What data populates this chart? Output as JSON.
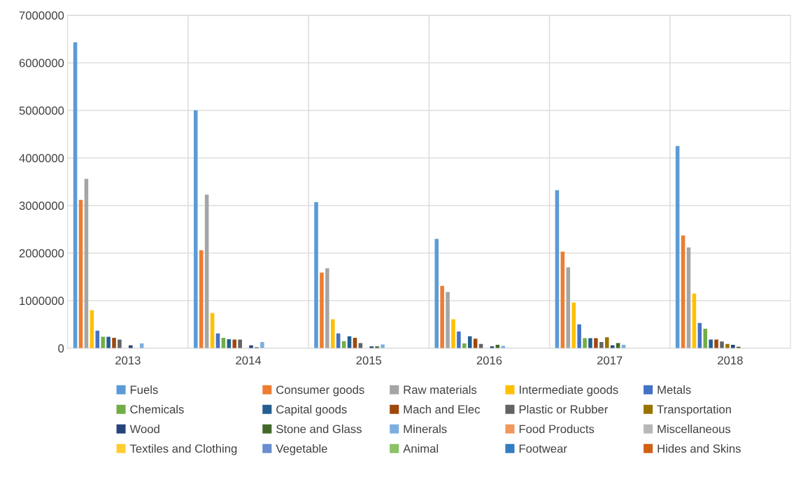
{
  "chart_data": {
    "type": "bar",
    "categories": [
      "2013",
      "2014",
      "2015",
      "2016",
      "2017",
      "2018"
    ],
    "ylim": [
      0,
      7000000
    ],
    "yticks": [
      0,
      1000000,
      2000000,
      3000000,
      4000000,
      5000000,
      6000000,
      7000000
    ],
    "grid": true,
    "legend": "bottom",
    "series": [
      {
        "name": "Fuels",
        "color": "#5b9bd5",
        "values": [
          6430000,
          5000000,
          3070000,
          2300000,
          3320000,
          4250000
        ]
      },
      {
        "name": "Consumer goods",
        "color": "#ed7d31",
        "values": [
          3120000,
          2060000,
          1590000,
          1310000,
          2030000,
          2370000
        ]
      },
      {
        "name": "Raw materials",
        "color": "#a5a5a5",
        "values": [
          3560000,
          3230000,
          1680000,
          1180000,
          1700000,
          2120000
        ]
      },
      {
        "name": "Intermediate goods",
        "color": "#ffc000",
        "values": [
          800000,
          740000,
          610000,
          610000,
          960000,
          1150000
        ]
      },
      {
        "name": "Metals",
        "color": "#4472c4",
        "values": [
          370000,
          310000,
          310000,
          350000,
          500000,
          530000
        ]
      },
      {
        "name": "Chemicals",
        "color": "#70ad47",
        "values": [
          240000,
          220000,
          150000,
          100000,
          210000,
          410000
        ]
      },
      {
        "name": "Capital goods",
        "color": "#255e91",
        "values": [
          240000,
          190000,
          250000,
          250000,
          210000,
          180000
        ]
      },
      {
        "name": "Mach and Elec",
        "color": "#9e480e",
        "values": [
          220000,
          180000,
          220000,
          200000,
          210000,
          180000
        ]
      },
      {
        "name": "Plastic or Rubber",
        "color": "#636363",
        "values": [
          180000,
          180000,
          110000,
          90000,
          130000,
          140000
        ]
      },
      {
        "name": "Transportation",
        "color": "#997300",
        "values": [
          0,
          0,
          0,
          null,
          230000,
          90000
        ]
      },
      {
        "name": "Wood",
        "color": "#264478",
        "values": [
          60000,
          60000,
          40000,
          40000,
          60000,
          70000
        ]
      },
      {
        "name": "Stone and Glass",
        "color": "#43682b",
        "values": [
          null,
          20000,
          40000,
          70000,
          110000,
          30000
        ]
      },
      {
        "name": "Minerals",
        "color": "#7cafdd",
        "values": [
          100000,
          130000,
          80000,
          50000,
          70000,
          null
        ]
      },
      {
        "name": "Food Products",
        "color": "#f1975a",
        "values": [
          0,
          0,
          0,
          0,
          0,
          null
        ]
      },
      {
        "name": "Miscellaneous",
        "color": "#b7b7b7",
        "values": [
          0,
          0,
          0,
          0,
          0,
          0
        ]
      },
      {
        "name": "Textiles and Clothing",
        "color": "#ffcd33",
        "values": [
          0,
          0,
          0,
          0,
          0,
          0
        ]
      },
      {
        "name": "Vegetable",
        "color": "#698ed0",
        "values": [
          0,
          0,
          0,
          0,
          0,
          0
        ]
      },
      {
        "name": "Animal",
        "color": "#8cc168",
        "values": [
          0,
          0,
          0,
          0,
          0,
          0
        ]
      },
      {
        "name": "Footwear",
        "color": "#327dc2",
        "values": [
          0,
          0,
          0,
          0,
          0,
          0
        ]
      },
      {
        "name": "Hides and Skins",
        "color": "#d26012",
        "values": [
          0,
          0,
          0,
          0,
          0,
          0
        ]
      }
    ]
  }
}
